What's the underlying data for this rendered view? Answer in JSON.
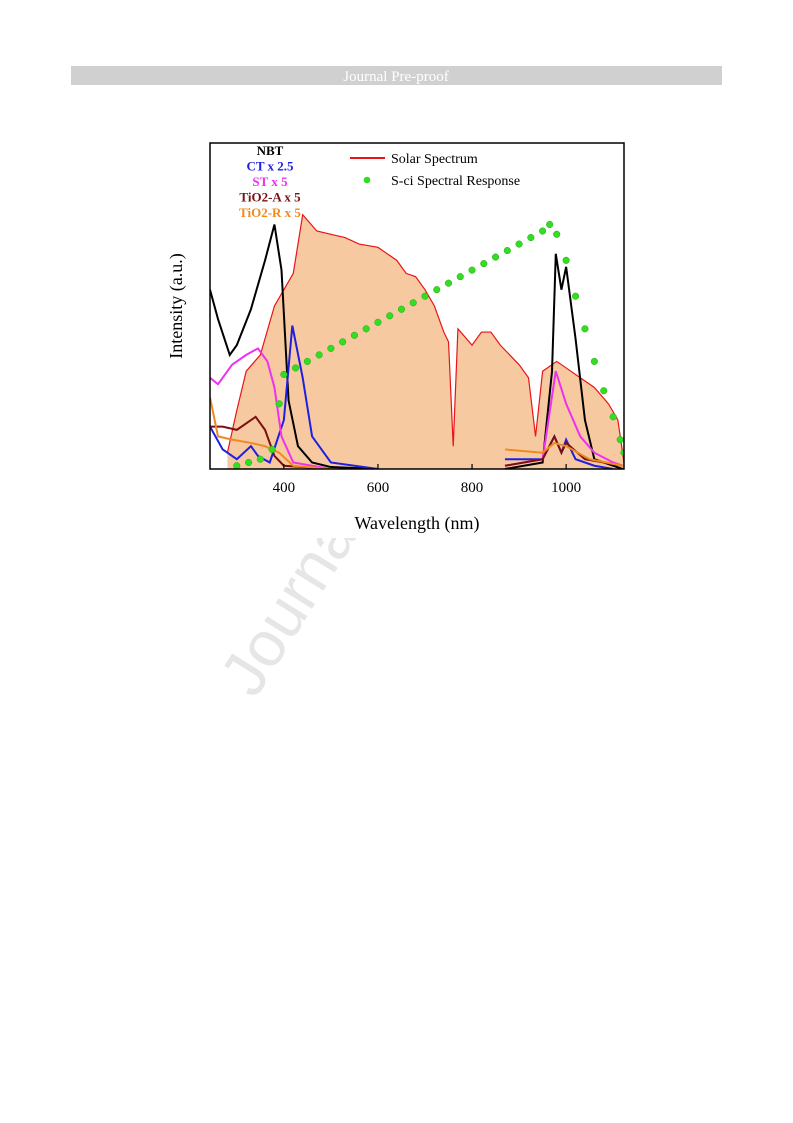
{
  "header": {
    "title": "Journal Pre-proof"
  },
  "watermark": "Journal Pre-proof",
  "chart_data": {
    "type": "line",
    "x_label": "Wavelength (nm)",
    "y_label": "Intensity (a.u.)",
    "xlim": [
      243,
      1123
    ],
    "ylim": [
      0,
      1
    ],
    "xticks": [
      400,
      600,
      800,
      1000
    ],
    "series": [
      {
        "name": "NBT",
        "color": "#000000",
        "x": [
          243,
          260,
          285,
          300,
          330,
          360,
          380,
          395,
          410,
          430,
          460,
          500,
          600,
          700,
          870,
          950,
          970,
          978,
          990,
          1000,
          1020,
          1040,
          1060,
          1120
        ],
        "values": [
          0.55,
          0.46,
          0.35,
          0.38,
          0.49,
          0.64,
          0.75,
          0.61,
          0.21,
          0.07,
          0.02,
          0.006,
          0,
          null,
          0,
          0.02,
          0.3,
          0.66,
          0.55,
          0.62,
          0.4,
          0.15,
          0.03,
          0
        ]
      },
      {
        "name": "CT x 2.5",
        "color": "#1f1fe0",
        "x": [
          243,
          270,
          300,
          330,
          345,
          370,
          400,
          418,
          440,
          460,
          500,
          600,
          700,
          870,
          950,
          975,
          990,
          1000,
          1020,
          1060,
          1100
        ],
        "values": [
          0.13,
          0.06,
          0.03,
          0.07,
          0.04,
          0.02,
          0.15,
          0.44,
          0.28,
          0.1,
          0.02,
          0,
          null,
          0.03,
          0.03,
          0.1,
          0.05,
          0.09,
          0.03,
          0.01,
          0
        ]
      },
      {
        "name": "ST x 5",
        "color": "#f030f0",
        "x": [
          243,
          260,
          290,
          320,
          345,
          365,
          380,
          395,
          420,
          500,
          700,
          870,
          950,
          978,
          1000,
          1030,
          1060,
          1100,
          1120
        ],
        "values": [
          0.28,
          0.26,
          0.32,
          0.35,
          0.37,
          0.33,
          0.25,
          0.1,
          0.02,
          0,
          null,
          0.01,
          0.03,
          0.3,
          0.2,
          0.1,
          0.05,
          0.02,
          0.01
        ]
      },
      {
        "name": "TiO2-A x 5",
        "color": "#7a1010",
        "x": [
          243,
          270,
          300,
          340,
          360,
          380,
          400,
          500,
          700,
          870,
          950,
          975,
          990,
          1000,
          1040,
          1120
        ],
        "values": [
          0.13,
          0.13,
          0.12,
          0.16,
          0.12,
          0.04,
          0.01,
          0,
          null,
          0.01,
          0.03,
          0.1,
          0.05,
          0.08,
          0.03,
          0.01
        ]
      },
      {
        "name": "TiO2-R x 5",
        "color": "#f08a1e",
        "x": [
          243,
          260,
          290,
          330,
          360,
          390,
          420,
          500,
          700,
          870,
          950,
          975,
          1000,
          1050,
          1120
        ],
        "values": [
          0.22,
          0.1,
          0.09,
          0.08,
          0.07,
          0.05,
          0.01,
          0,
          null,
          0.06,
          0.05,
          0.08,
          0.07,
          0.03,
          0.01
        ]
      },
      {
        "name": "Solar Spectrum",
        "color": "#e8141a",
        "fill": "#f7c9a0",
        "x": [
          280,
          300,
          320,
          350,
          380,
          400,
          420,
          440,
          470,
          500,
          530,
          560,
          600,
          640,
          660,
          680,
          700,
          720,
          740,
          750,
          760,
          770,
          800,
          820,
          840,
          860,
          880,
          900,
          920,
          935,
          950,
          980,
          1000,
          1030,
          1060,
          1090,
          1110,
          1123
        ],
        "values": [
          0.05,
          0.18,
          0.3,
          0.35,
          0.5,
          0.55,
          0.6,
          0.78,
          0.73,
          0.72,
          0.71,
          0.69,
          0.68,
          0.64,
          0.6,
          0.59,
          0.55,
          0.5,
          0.42,
          0.39,
          0.07,
          0.43,
          0.38,
          0.42,
          0.42,
          0.38,
          0.35,
          0.32,
          0.28,
          0.1,
          0.3,
          0.33,
          0.31,
          0.28,
          0.25,
          0.2,
          0.15,
          0.02
        ]
      },
      {
        "name": "S-ci Spectral Response",
        "color": "#33dd22",
        "marker": "dot",
        "x": [
          300,
          325,
          350,
          375,
          390,
          400,
          425,
          450,
          475,
          500,
          525,
          550,
          575,
          600,
          625,
          650,
          675,
          700,
          725,
          750,
          775,
          800,
          825,
          850,
          875,
          900,
          925,
          950,
          965,
          980,
          1000,
          1020,
          1040,
          1060,
          1080,
          1100,
          1115,
          1123
        ],
        "values": [
          0.01,
          0.02,
          0.03,
          0.06,
          0.2,
          0.29,
          0.31,
          0.33,
          0.35,
          0.37,
          0.39,
          0.41,
          0.43,
          0.45,
          0.47,
          0.49,
          0.51,
          0.53,
          0.55,
          0.57,
          0.59,
          0.61,
          0.63,
          0.65,
          0.67,
          0.69,
          0.71,
          0.73,
          0.75,
          0.72,
          0.64,
          0.53,
          0.43,
          0.33,
          0.24,
          0.16,
          0.09,
          0.05
        ]
      }
    ]
  }
}
